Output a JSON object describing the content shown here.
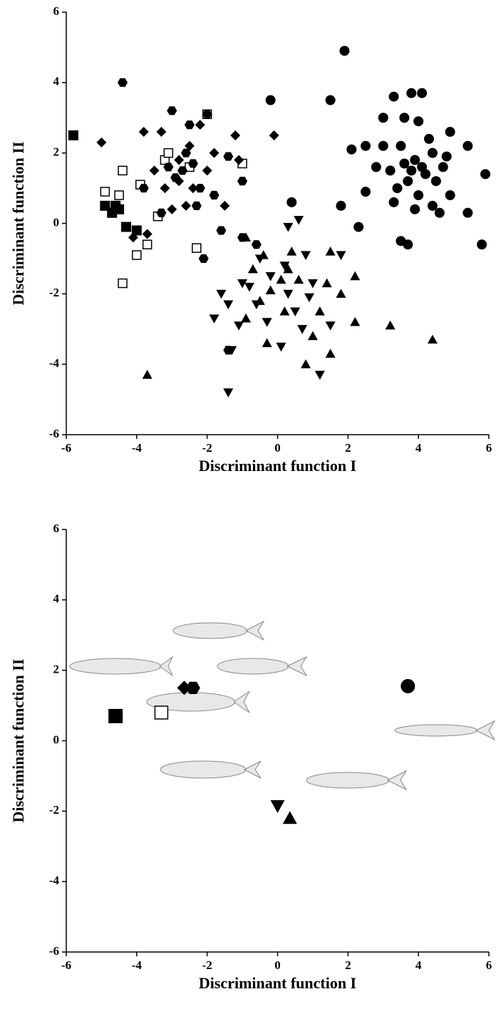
{
  "chart_data": [
    {
      "type": "scatter",
      "xlabel": "Discriminant function I",
      "ylabel": "Discriminant function II",
      "xlim": [
        -6,
        6
      ],
      "ylim": [
        -6,
        6
      ],
      "xticks": [
        -6,
        -4,
        -2,
        0,
        2,
        4,
        6
      ],
      "yticks": [
        -6,
        -4,
        -2,
        0,
        2,
        4,
        6
      ],
      "series": [
        {
          "marker": "square",
          "color": "#000000",
          "x": [
            -5.8,
            -4.9,
            -4.7,
            -4.5,
            -4.3,
            -4.0,
            -4.6
          ],
          "y": [
            2.5,
            0.5,
            0.3,
            0.4,
            -0.1,
            -0.2,
            0.5
          ]
        },
        {
          "marker": "open-square",
          "color": "#000000",
          "x": [
            -4.4,
            -4.5,
            -4.9,
            -4.4,
            -4.0,
            -3.7,
            -3.4,
            -3.2,
            -3.1,
            -2.3,
            -2.0,
            -1.0,
            -3.9,
            -2.5
          ],
          "y": [
            1.5,
            0.8,
            0.9,
            -1.7,
            -0.9,
            -0.6,
            0.2,
            1.8,
            2.0,
            -0.7,
            3.1,
            1.7,
            1.1,
            1.6
          ]
        },
        {
          "marker": "diamond",
          "color": "#000000",
          "x": [
            -5.0,
            -3.8,
            -3.3,
            -3.5,
            -2.8,
            -2.5,
            -2.2,
            -1.2,
            -0.1,
            -3.0,
            -2.6,
            -3.7,
            -1.5,
            -2.0,
            -2.8,
            -3.2,
            -2.4,
            -1.8,
            -1.1,
            -4.1
          ],
          "y": [
            2.3,
            2.6,
            2.6,
            1.5,
            1.2,
            2.2,
            2.8,
            2.5,
            2.5,
            0.4,
            0.5,
            -0.3,
            0.5,
            1.5,
            1.8,
            1.0,
            1.0,
            2.0,
            1.8,
            -0.4
          ]
        },
        {
          "marker": "hexagon",
          "color": "#000000",
          "x": [
            -4.4,
            -3.0,
            -2.5,
            -2.0,
            -1.4,
            -1.0,
            -3.8,
            -3.3,
            -2.1,
            -1.6,
            -1.0,
            -0.6,
            -1.4,
            -2.7,
            -2.4,
            -2.9,
            -2.2,
            -2.6,
            -3.1,
            -1.8,
            -2.3
          ],
          "y": [
            4.0,
            3.2,
            2.8,
            3.1,
            1.9,
            1.2,
            1.0,
            0.3,
            -1.0,
            -0.2,
            -0.4,
            -0.6,
            -3.6,
            1.5,
            1.7,
            1.3,
            1.0,
            2.0,
            1.6,
            0.8,
            0.5
          ]
        },
        {
          "marker": "circle",
          "color": "#000000",
          "x": [
            1.9,
            -0.2,
            1.5,
            0.4,
            1.8,
            2.1,
            2.5,
            2.8,
            2.5,
            2.3,
            3.0,
            3.3,
            3.6,
            3.8,
            4.1,
            4.0,
            3.5,
            3.9,
            4.2,
            3.7,
            4.0,
            3.3,
            3.4,
            3.5,
            3.7,
            4.4,
            4.6,
            4.9,
            4.8,
            4.4,
            4.9,
            5.4,
            5.4,
            5.8,
            5.9,
            3.2,
            3.0,
            3.8,
            4.1,
            3.6,
            4.5,
            4.7,
            3.9,
            4.3
          ],
          "y": [
            4.9,
            3.5,
            3.5,
            0.6,
            0.5,
            2.1,
            2.2,
            1.6,
            0.9,
            -0.1,
            3.0,
            3.6,
            3.0,
            3.7,
            3.7,
            2.9,
            2.2,
            1.8,
            1.4,
            1.2,
            0.8,
            0.6,
            1.0,
            -0.5,
            -0.6,
            0.5,
            0.3,
            0.8,
            1.9,
            2.0,
            2.6,
            2.2,
            0.3,
            -0.6,
            1.4,
            1.5,
            2.2,
            1.5,
            1.6,
            1.7,
            1.2,
            1.6,
            0.4,
            2.4
          ]
        },
        {
          "marker": "triangle-down",
          "color": "#000000",
          "x": [
            -1.4,
            -1.3,
            -1.6,
            -1.8,
            -1.4,
            -1.0,
            -0.5,
            -0.2,
            0.2,
            0.3,
            0.6,
            0.8,
            1.0,
            0.5,
            0.1,
            -0.6,
            -0.3,
            0.9,
            1.2,
            1.8,
            0.3,
            -0.8,
            0.7,
            1.5,
            -1.1
          ],
          "y": [
            -4.8,
            -3.6,
            -2.0,
            -2.7,
            -2.3,
            -1.7,
            -1.0,
            -1.5,
            -1.2,
            -0.1,
            0.1,
            -0.9,
            -1.7,
            -2.5,
            -3.5,
            -2.3,
            -2.8,
            -2.1,
            -4.3,
            -0.9,
            -2.0,
            -1.8,
            -3.0,
            -2.9,
            -2.9
          ]
        },
        {
          "marker": "triangle-up",
          "color": "#000000",
          "x": [
            -3.7,
            -0.9,
            -0.4,
            0.1,
            0.4,
            1.5,
            2.2,
            2.2,
            3.2,
            4.4,
            1.5,
            0.8,
            -0.3,
            -0.9,
            -0.5,
            1.2,
            1.4,
            0.6,
            -0.2,
            0.2,
            1.0,
            0.3,
            -0.7,
            1.8
          ],
          "y": [
            -4.3,
            -0.4,
            -0.9,
            -1.6,
            -0.8,
            -0.8,
            -1.5,
            -2.8,
            -2.9,
            -3.3,
            -3.7,
            -4.0,
            -3.4,
            -2.7,
            -2.2,
            -2.5,
            -1.7,
            -1.6,
            -1.9,
            -2.5,
            -3.2,
            -1.3,
            -1.3,
            -2.0
          ]
        }
      ]
    },
    {
      "type": "scatter",
      "xlabel": "Discriminant function I",
      "ylabel": "Discriminant function II",
      "xlim": [
        -6,
        6
      ],
      "ylim": [
        -6,
        6
      ],
      "xticks": [
        -6,
        -4,
        -2,
        0,
        2,
        4,
        6
      ],
      "yticks": [
        -6,
        -4,
        -2,
        0,
        2,
        4,
        6
      ],
      "series": [
        {
          "marker": "square",
          "color": "#000000",
          "x": [
            -4.6
          ],
          "y": [
            0.7
          ]
        },
        {
          "marker": "open-square",
          "color": "#000000",
          "x": [
            -3.3
          ],
          "y": [
            0.8
          ]
        },
        {
          "marker": "diamond",
          "color": "#000000",
          "x": [
            -2.65
          ],
          "y": [
            1.5
          ]
        },
        {
          "marker": "hexagon",
          "color": "#000000",
          "x": [
            -2.4
          ],
          "y": [
            1.5
          ]
        },
        {
          "marker": "circle",
          "color": "#000000",
          "x": [
            3.7
          ],
          "y": [
            1.55
          ]
        },
        {
          "marker": "triangle-down",
          "color": "#000000",
          "x": [
            0.0
          ],
          "y": [
            -1.85
          ]
        },
        {
          "marker": "triangle-up",
          "color": "#000000",
          "x": [
            0.35
          ],
          "y": [
            -2.2
          ]
        }
      ]
    }
  ]
}
